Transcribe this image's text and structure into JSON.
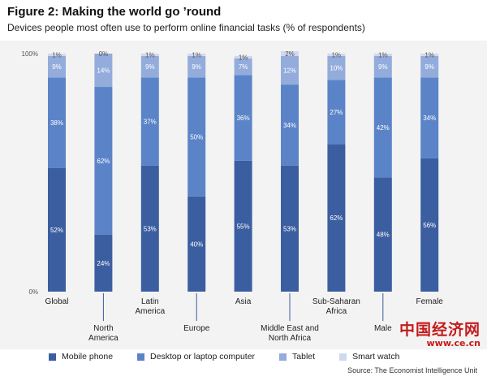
{
  "chart_data": {
    "type": "bar",
    "stacked": true,
    "title": "Figure 2: Making the world go ’round",
    "subtitle": "Devices people most often use to perform online financial tasks (% of respondents)",
    "categories": [
      "Global",
      "North America",
      "Latin America",
      "Europe",
      "Asia",
      "Middle East and North Africa",
      "Sub-Saharan Africa",
      "Male",
      "Female"
    ],
    "category_lines": [
      [
        "Global"
      ],
      [
        "North",
        "America"
      ],
      [
        "Latin",
        "America"
      ],
      [
        "Europe"
      ],
      [
        "Asia"
      ],
      [
        "Middle East and",
        "North Africa"
      ],
      [
        "Sub-Saharan",
        "Africa"
      ],
      [
        "Male"
      ],
      [
        "Female"
      ]
    ],
    "series": [
      {
        "name": "Mobile phone",
        "color": "#3b5ea0",
        "label_color": "#ffffff",
        "values": [
          52,
          24,
          53,
          40,
          55,
          53,
          62,
          48,
          56
        ]
      },
      {
        "name": "Desktop or laptop computer",
        "color": "#5b84c8",
        "label_color": "#ffffff",
        "values": [
          38,
          62,
          37,
          50,
          36,
          34,
          27,
          42,
          34
        ]
      },
      {
        "name": "Tablet",
        "color": "#93acdc",
        "label_color": "#ffffff",
        "values": [
          9,
          14,
          9,
          9,
          7,
          12,
          10,
          9,
          9
        ]
      },
      {
        "name": "Smart watch",
        "color": "#cfd8ee",
        "label_color": "#555555",
        "values": [
          1,
          0,
          1,
          1,
          1,
          2,
          1,
          1,
          1
        ]
      }
    ],
    "value_suffix": "%",
    "yticks": [
      "0%",
      "100%"
    ],
    "ylim": [
      0,
      100
    ],
    "grid": false,
    "legend_position": "bottom"
  },
  "source": "Source: The Economist Intelligence Unit",
  "watermark": {
    "text": "中国经济网",
    "url": "www.ce.cn"
  },
  "colors": {
    "plot_background": "#f3f3f3",
    "tick_line": "#3b5ea0",
    "watermark": "#c41b1b"
  }
}
